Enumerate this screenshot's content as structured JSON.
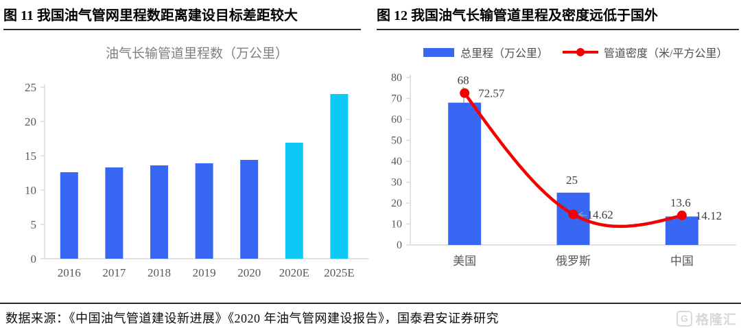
{
  "header": {
    "left_title": "图 11  我国油气管网里程数距离建设目标差距较大",
    "right_title": "图 12 我国油气长输管道里程及密度远低于国外"
  },
  "footer": {
    "source_text": "数据来源：《中国油气管道建设新进展》《2020 年油气管网建设报告》，国泰君安证券研究",
    "watermark_text": "格隆汇",
    "watermark_icon": "G"
  },
  "colors": {
    "bar_blue": "#3767F3",
    "bar_cyan": "#0CC9F7",
    "line_red": "#F40000",
    "axis_text": "#595959",
    "axis_line": "#D9D7CE",
    "legend_text": "#4D4D4D",
    "label_text": "#404040",
    "chart_title": "#7F7F7F",
    "leader_gray": "#9B9B9B"
  },
  "chart_data": [
    {
      "type": "bar",
      "title": "油气长输管道里程数（万公里）",
      "categories": [
        "2016",
        "2017",
        "2018",
        "2019",
        "2020",
        "2020E",
        "2025E"
      ],
      "values": [
        12.6,
        13.3,
        13.6,
        13.9,
        14.4,
        16.9,
        24
      ],
      "bar_colors": [
        "#3767F3",
        "#3767F3",
        "#3767F3",
        "#3767F3",
        "#3767F3",
        "#0CC9F7",
        "#0CC9F7"
      ],
      "xlabel": "",
      "ylabel": "",
      "ylim": [
        0,
        25
      ],
      "ytick_step": 5,
      "yticks": [
        "0",
        "5",
        "10",
        "15",
        "20",
        "25"
      ],
      "grid": false,
      "legend": "none"
    },
    {
      "type": "bar+line",
      "title": "",
      "categories": [
        "美国",
        "俄罗斯",
        "中国"
      ],
      "series": [
        {
          "name": "总里程（万公里）",
          "type": "bar",
          "color": "#3767F3",
          "values": [
            68,
            25,
            13.6
          ],
          "labels": [
            "68",
            "25",
            "13.6"
          ]
        },
        {
          "name": "管道密度（米/平方公里）",
          "type": "line",
          "color": "#F40000",
          "values": [
            72.57,
            14.62,
            14.12
          ],
          "labels": [
            "72.57",
            "14.62",
            "14.12"
          ]
        }
      ],
      "xlabel": "",
      "ylabel": "",
      "ylim": [
        0,
        80
      ],
      "ytick_step": 10,
      "yticks": [
        "0",
        "10",
        "20",
        "30",
        "40",
        "50",
        "60",
        "70",
        "80"
      ],
      "grid": false,
      "legend_position": "top"
    }
  ]
}
